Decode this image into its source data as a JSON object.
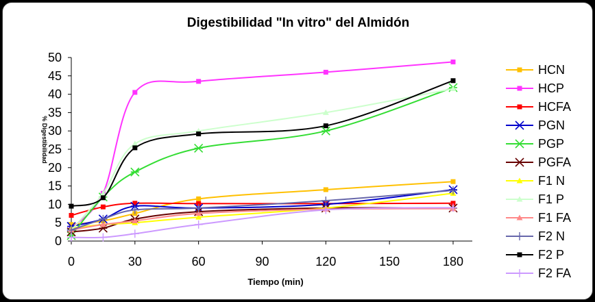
{
  "chart_data": {
    "type": "line",
    "title": "Digestibilidad \"In vitro\"  del Almidón",
    "xlabel": "Tiempo (min)",
    "ylabel": "% Digestibilidad",
    "x": [
      0,
      15,
      30,
      60,
      120,
      180
    ],
    "xticks": [
      "0",
      "30",
      "60",
      "90",
      "120",
      "150",
      "180"
    ],
    "yticks": [
      "0",
      "5",
      "10",
      "15",
      "20",
      "25",
      "30",
      "35",
      "40",
      "45",
      "50"
    ],
    "xlim": [
      0,
      180
    ],
    "ylim": [
      0,
      50
    ],
    "grid": false,
    "legend_position": "right",
    "series": [
      {
        "name": "HCN",
        "color": "#FFC000",
        "marker": "square",
        "values": [
          4.5,
          5.5,
          7.5,
          11.5,
          14,
          16.2
        ]
      },
      {
        "name": "HCP",
        "color": "#FF33FF",
        "marker": "square",
        "values": [
          3.5,
          13,
          40.5,
          43.5,
          46,
          48.8
        ]
      },
      {
        "name": "HCFA",
        "color": "#FF0000",
        "marker": "square",
        "values": [
          7,
          9.3,
          10.3,
          10.2,
          10.2,
          10.3
        ]
      },
      {
        "name": "PGN",
        "color": "#0000CC",
        "marker": "asterisk",
        "values": [
          4,
          6,
          9.5,
          9,
          10,
          14
        ]
      },
      {
        "name": "PGP",
        "color": "#33DD33",
        "marker": "asterisk",
        "values": [
          1.5,
          12,
          18.8,
          25.3,
          30,
          41.8
        ]
      },
      {
        "name": "PGFA",
        "color": "#660000",
        "marker": "asterisk",
        "values": [
          2.5,
          3.5,
          6,
          8,
          9,
          9
        ]
      },
      {
        "name": "F1 N",
        "color": "#FFFF00",
        "marker": "triangle",
        "values": [
          3.5,
          4.5,
          5,
          6.5,
          9,
          13
        ]
      },
      {
        "name": "F1 P",
        "color": "#CCFFCC",
        "marker": "triangle",
        "values": [
          3,
          13,
          26.5,
          30,
          35,
          41.5
        ]
      },
      {
        "name": "F1 FA",
        "color": "#FF8888",
        "marker": "triangle",
        "values": [
          3,
          4.5,
          5.5,
          7.5,
          8.7,
          8.8
        ]
      },
      {
        "name": "F2 N",
        "color": "#6666AA",
        "marker": "plus",
        "values": [
          3,
          6,
          8.5,
          9,
          11,
          13.8
        ]
      },
      {
        "name": "F2 P",
        "color": "#000000",
        "marker": "square",
        "values": [
          9.5,
          11.8,
          25.4,
          29.2,
          31.4,
          43.7
        ]
      },
      {
        "name": "F2 FA",
        "color": "#CC99FF",
        "marker": "plus",
        "values": [
          1,
          1,
          2,
          4.5,
          8.5,
          9.1
        ]
      }
    ]
  }
}
